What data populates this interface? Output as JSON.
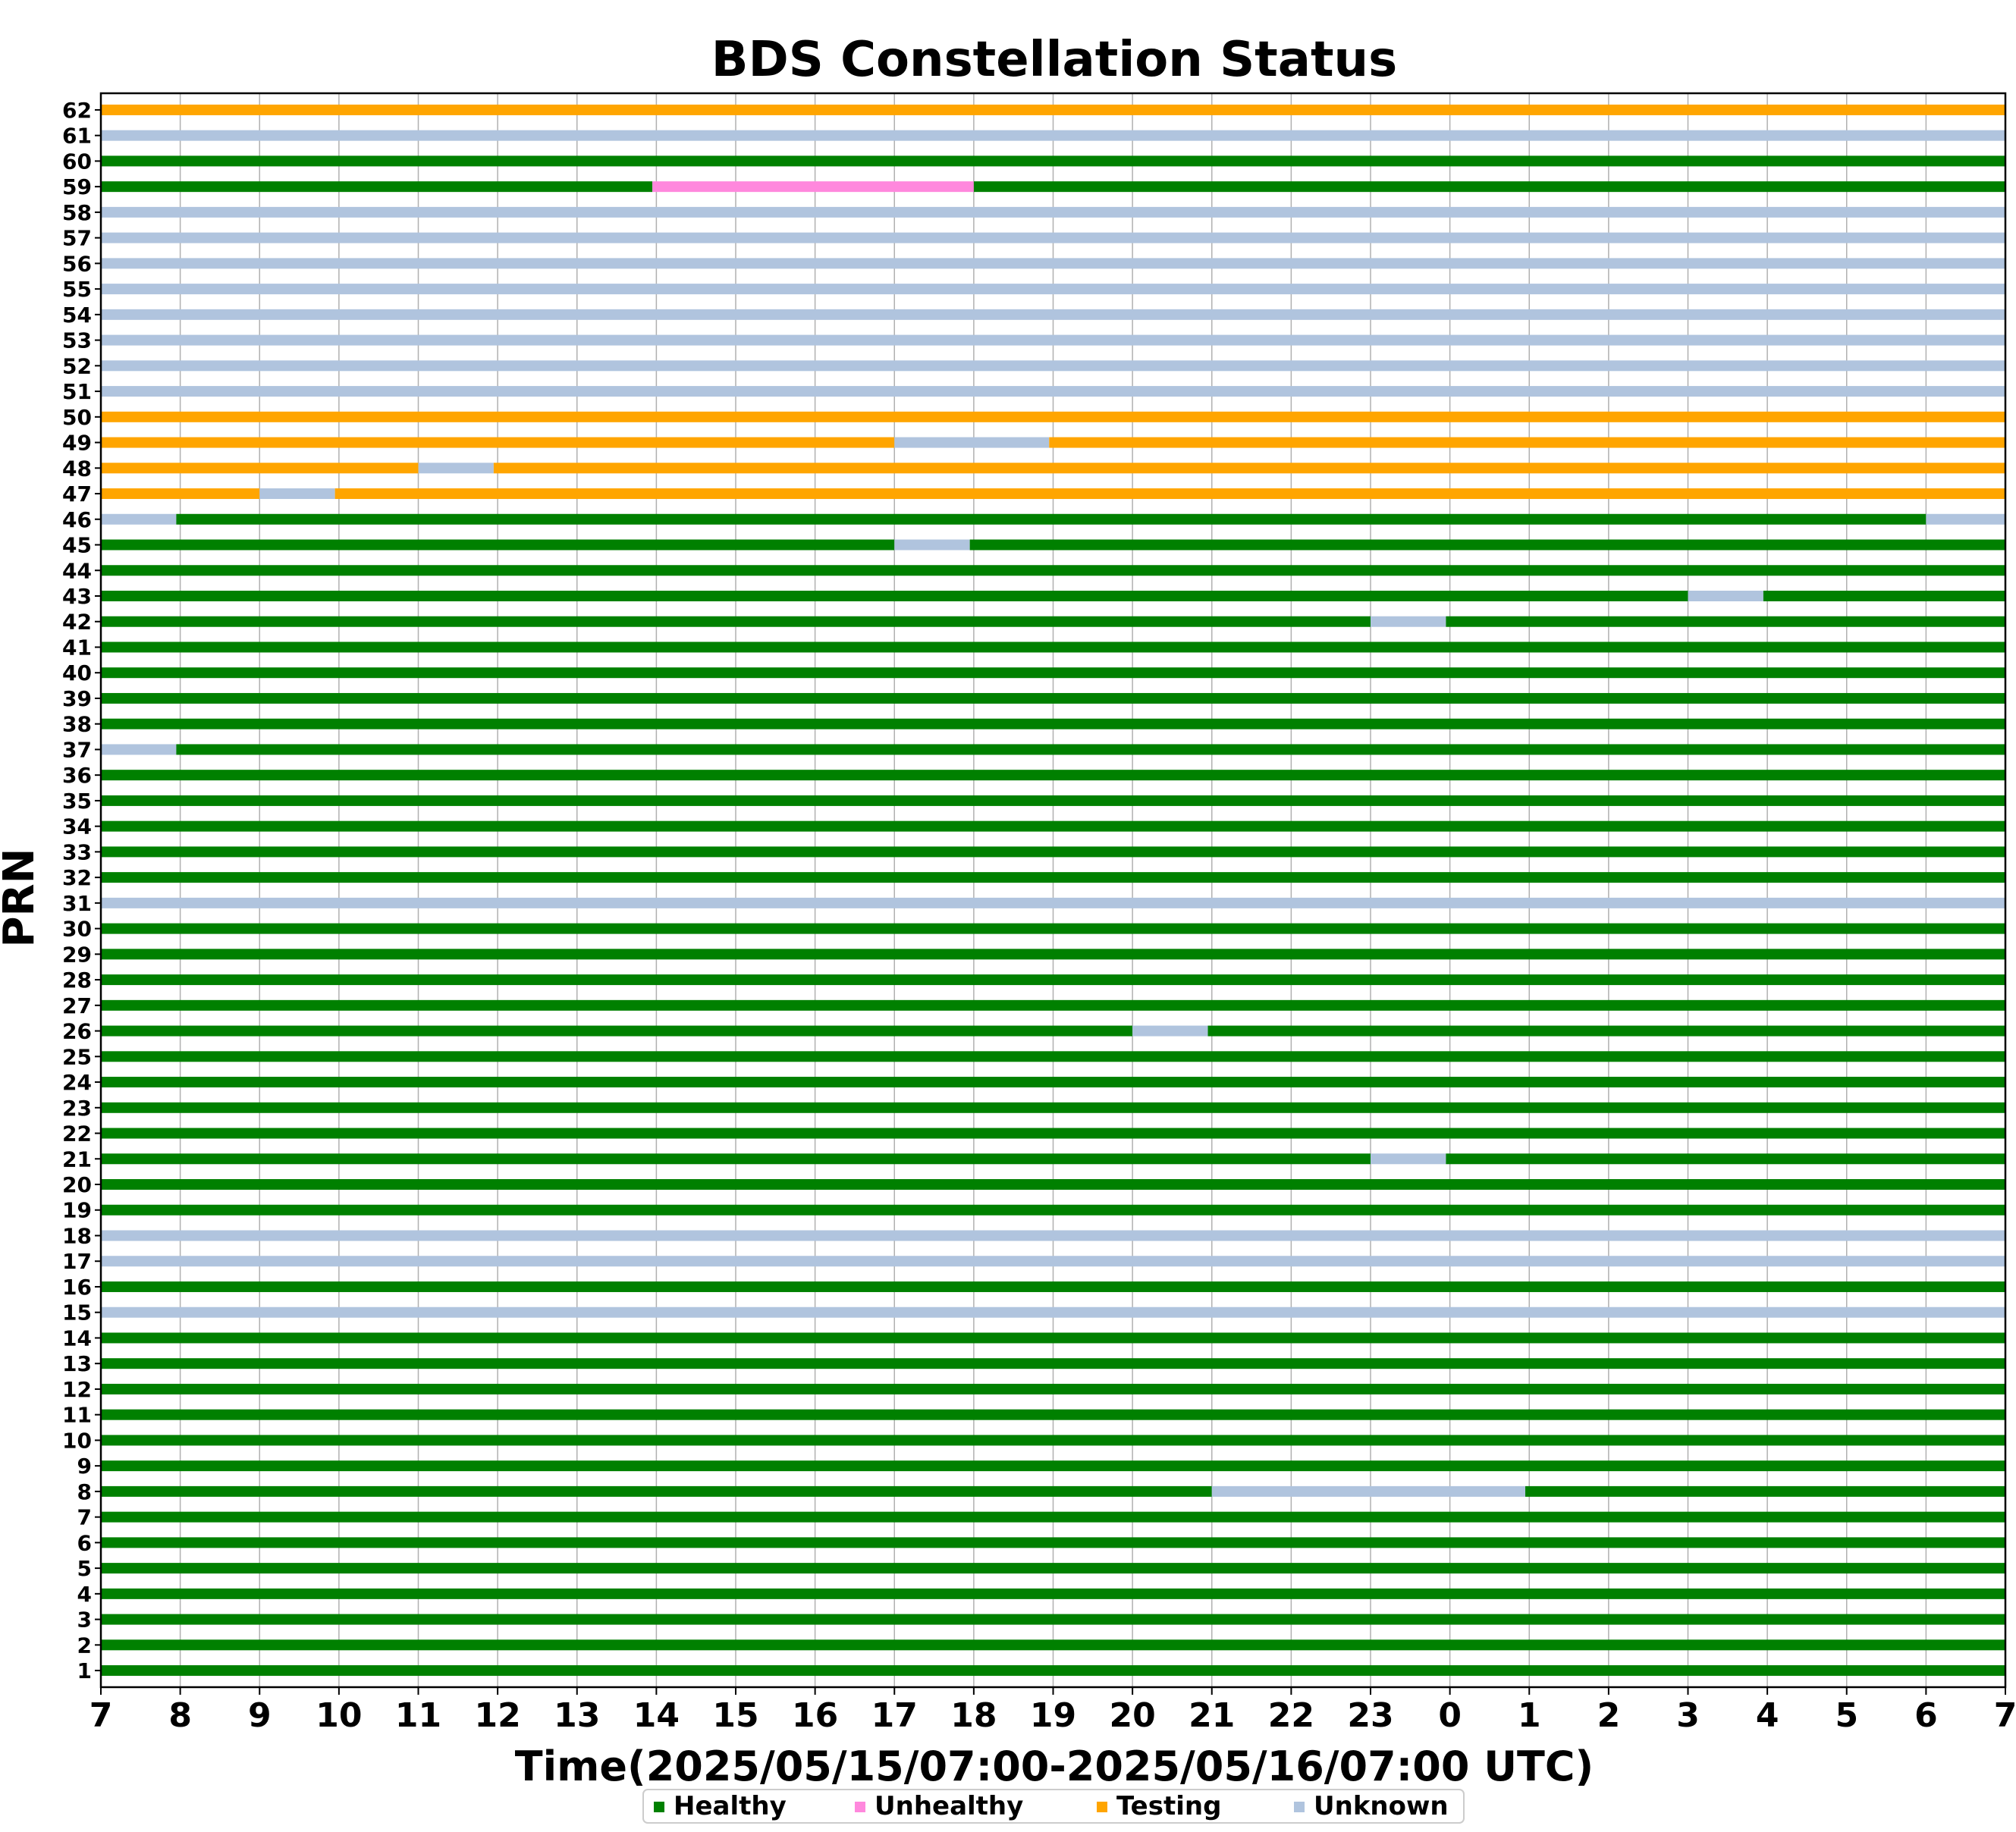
{
  "chart_data": {
    "type": "timeline",
    "title": "BDS Constellation Status",
    "xlabel": "Time(2025/05/15/07:00-2025/05/16/07:00 UTC)",
    "ylabel": "PRN",
    "x_start": "2025-05-15 07:00 UTC",
    "x_end": "2025-05-16 07:00 UTC",
    "xlim_hours": [
      0,
      24
    ],
    "x_tick_labels": [
      "7",
      "8",
      "9",
      "10",
      "11",
      "12",
      "13",
      "14",
      "15",
      "16",
      "17",
      "18",
      "19",
      "20",
      "21",
      "22",
      "23",
      "0",
      "1",
      "2",
      "3",
      "4",
      "5",
      "6",
      "7"
    ],
    "grid": "vertical",
    "legend": {
      "placement": "bottom-center",
      "items": [
        {
          "key": "healthy",
          "label": "Healthy"
        },
        {
          "key": "unhealthy",
          "label": "Unhealthy"
        },
        {
          "key": "testing",
          "label": "Testing"
        },
        {
          "key": "unknown",
          "label": "Unknown"
        }
      ]
    },
    "colors": {
      "healthy": "#008000",
      "unhealthy": "#ff88dd",
      "testing": "#ffa500",
      "unknown": "#b0c4de"
    },
    "satellites": [
      {
        "prn": 1,
        "segments": [
          {
            "start": 0,
            "end": 24,
            "status": "healthy"
          }
        ]
      },
      {
        "prn": 2,
        "segments": [
          {
            "start": 0,
            "end": 24,
            "status": "healthy"
          }
        ]
      },
      {
        "prn": 3,
        "segments": [
          {
            "start": 0,
            "end": 24,
            "status": "healthy"
          }
        ]
      },
      {
        "prn": 4,
        "segments": [
          {
            "start": 0,
            "end": 24,
            "status": "healthy"
          }
        ]
      },
      {
        "prn": 5,
        "segments": [
          {
            "start": 0,
            "end": 24,
            "status": "healthy"
          }
        ]
      },
      {
        "prn": 6,
        "segments": [
          {
            "start": 0,
            "end": 24,
            "status": "healthy"
          }
        ]
      },
      {
        "prn": 7,
        "segments": [
          {
            "start": 0,
            "end": 24,
            "status": "healthy"
          }
        ]
      },
      {
        "prn": 8,
        "segments": [
          {
            "start": 0,
            "end": 14,
            "status": "healthy"
          },
          {
            "start": 14,
            "end": 17.95,
            "status": "unknown"
          },
          {
            "start": 17.95,
            "end": 24,
            "status": "healthy"
          }
        ]
      },
      {
        "prn": 9,
        "segments": [
          {
            "start": 0,
            "end": 24,
            "status": "healthy"
          }
        ]
      },
      {
        "prn": 10,
        "segments": [
          {
            "start": 0,
            "end": 24,
            "status": "healthy"
          }
        ]
      },
      {
        "prn": 11,
        "segments": [
          {
            "start": 0,
            "end": 24,
            "status": "healthy"
          }
        ]
      },
      {
        "prn": 12,
        "segments": [
          {
            "start": 0,
            "end": 24,
            "status": "healthy"
          }
        ]
      },
      {
        "prn": 13,
        "segments": [
          {
            "start": 0,
            "end": 24,
            "status": "healthy"
          }
        ]
      },
      {
        "prn": 14,
        "segments": [
          {
            "start": 0,
            "end": 24,
            "status": "healthy"
          }
        ]
      },
      {
        "prn": 15,
        "segments": [
          {
            "start": 0,
            "end": 24,
            "status": "unknown"
          }
        ]
      },
      {
        "prn": 16,
        "segments": [
          {
            "start": 0,
            "end": 24,
            "status": "healthy"
          }
        ]
      },
      {
        "prn": 17,
        "segments": [
          {
            "start": 0,
            "end": 24,
            "status": "unknown"
          }
        ]
      },
      {
        "prn": 18,
        "segments": [
          {
            "start": 0,
            "end": 24,
            "status": "unknown"
          }
        ]
      },
      {
        "prn": 19,
        "segments": [
          {
            "start": 0,
            "end": 24,
            "status": "healthy"
          }
        ]
      },
      {
        "prn": 20,
        "segments": [
          {
            "start": 0,
            "end": 24,
            "status": "healthy"
          }
        ]
      },
      {
        "prn": 21,
        "segments": [
          {
            "start": 0,
            "end": 16,
            "status": "healthy"
          },
          {
            "start": 16,
            "end": 16.95,
            "status": "unknown"
          },
          {
            "start": 16.95,
            "end": 24,
            "status": "healthy"
          }
        ]
      },
      {
        "prn": 22,
        "segments": [
          {
            "start": 0,
            "end": 24,
            "status": "healthy"
          }
        ]
      },
      {
        "prn": 23,
        "segments": [
          {
            "start": 0,
            "end": 24,
            "status": "healthy"
          }
        ]
      },
      {
        "prn": 24,
        "segments": [
          {
            "start": 0,
            "end": 24,
            "status": "healthy"
          }
        ]
      },
      {
        "prn": 25,
        "segments": [
          {
            "start": 0,
            "end": 24,
            "status": "healthy"
          }
        ]
      },
      {
        "prn": 26,
        "segments": [
          {
            "start": 0,
            "end": 13,
            "status": "healthy"
          },
          {
            "start": 13,
            "end": 13.95,
            "status": "unknown"
          },
          {
            "start": 13.95,
            "end": 24,
            "status": "healthy"
          }
        ]
      },
      {
        "prn": 27,
        "segments": [
          {
            "start": 0,
            "end": 24,
            "status": "healthy"
          }
        ]
      },
      {
        "prn": 28,
        "segments": [
          {
            "start": 0,
            "end": 24,
            "status": "healthy"
          }
        ]
      },
      {
        "prn": 29,
        "segments": [
          {
            "start": 0,
            "end": 24,
            "status": "healthy"
          }
        ]
      },
      {
        "prn": 30,
        "segments": [
          {
            "start": 0,
            "end": 24,
            "status": "healthy"
          }
        ]
      },
      {
        "prn": 31,
        "segments": [
          {
            "start": 0,
            "end": 24,
            "status": "unknown"
          }
        ]
      },
      {
        "prn": 32,
        "segments": [
          {
            "start": 0,
            "end": 24,
            "status": "healthy"
          }
        ]
      },
      {
        "prn": 33,
        "segments": [
          {
            "start": 0,
            "end": 24,
            "status": "healthy"
          }
        ]
      },
      {
        "prn": 34,
        "segments": [
          {
            "start": 0,
            "end": 24,
            "status": "healthy"
          }
        ]
      },
      {
        "prn": 35,
        "segments": [
          {
            "start": 0,
            "end": 24,
            "status": "healthy"
          }
        ]
      },
      {
        "prn": 36,
        "segments": [
          {
            "start": 0,
            "end": 24,
            "status": "healthy"
          }
        ]
      },
      {
        "prn": 37,
        "segments": [
          {
            "start": 0,
            "end": 0.95,
            "status": "unknown"
          },
          {
            "start": 0.95,
            "end": 24,
            "status": "healthy"
          }
        ]
      },
      {
        "prn": 38,
        "segments": [
          {
            "start": 0,
            "end": 24,
            "status": "healthy"
          }
        ]
      },
      {
        "prn": 39,
        "segments": [
          {
            "start": 0,
            "end": 24,
            "status": "healthy"
          }
        ]
      },
      {
        "prn": 40,
        "segments": [
          {
            "start": 0,
            "end": 24,
            "status": "healthy"
          }
        ]
      },
      {
        "prn": 41,
        "segments": [
          {
            "start": 0,
            "end": 24,
            "status": "healthy"
          }
        ]
      },
      {
        "prn": 42,
        "segments": [
          {
            "start": 0,
            "end": 16,
            "status": "healthy"
          },
          {
            "start": 16,
            "end": 16.95,
            "status": "unknown"
          },
          {
            "start": 16.95,
            "end": 24,
            "status": "healthy"
          }
        ]
      },
      {
        "prn": 43,
        "segments": [
          {
            "start": 0,
            "end": 20,
            "status": "healthy"
          },
          {
            "start": 20,
            "end": 20.95,
            "status": "unknown"
          },
          {
            "start": 20.95,
            "end": 24,
            "status": "healthy"
          }
        ]
      },
      {
        "prn": 44,
        "segments": [
          {
            "start": 0,
            "end": 24,
            "status": "healthy"
          }
        ]
      },
      {
        "prn": 45,
        "segments": [
          {
            "start": 0,
            "end": 10,
            "status": "healthy"
          },
          {
            "start": 10,
            "end": 10.95,
            "status": "unknown"
          },
          {
            "start": 10.95,
            "end": 24,
            "status": "healthy"
          }
        ]
      },
      {
        "prn": 46,
        "segments": [
          {
            "start": 0,
            "end": 0.95,
            "status": "unknown"
          },
          {
            "start": 0.95,
            "end": 23,
            "status": "healthy"
          },
          {
            "start": 23,
            "end": 24,
            "status": "unknown"
          }
        ]
      },
      {
        "prn": 47,
        "segments": [
          {
            "start": 0,
            "end": 2,
            "status": "testing"
          },
          {
            "start": 2,
            "end": 2.95,
            "status": "unknown"
          },
          {
            "start": 2.95,
            "end": 24,
            "status": "testing"
          }
        ]
      },
      {
        "prn": 48,
        "segments": [
          {
            "start": 0,
            "end": 4,
            "status": "testing"
          },
          {
            "start": 4,
            "end": 4.95,
            "status": "unknown"
          },
          {
            "start": 4.95,
            "end": 24,
            "status": "testing"
          }
        ]
      },
      {
        "prn": 49,
        "segments": [
          {
            "start": 0,
            "end": 10,
            "status": "testing"
          },
          {
            "start": 10,
            "end": 11.95,
            "status": "unknown"
          },
          {
            "start": 11.95,
            "end": 24,
            "status": "testing"
          }
        ]
      },
      {
        "prn": 50,
        "segments": [
          {
            "start": 0,
            "end": 24,
            "status": "testing"
          }
        ]
      },
      {
        "prn": 51,
        "segments": [
          {
            "start": 0,
            "end": 24,
            "status": "unknown"
          }
        ]
      },
      {
        "prn": 52,
        "segments": [
          {
            "start": 0,
            "end": 24,
            "status": "unknown"
          }
        ]
      },
      {
        "prn": 53,
        "segments": [
          {
            "start": 0,
            "end": 24,
            "status": "unknown"
          }
        ]
      },
      {
        "prn": 54,
        "segments": [
          {
            "start": 0,
            "end": 24,
            "status": "unknown"
          }
        ]
      },
      {
        "prn": 55,
        "segments": [
          {
            "start": 0,
            "end": 24,
            "status": "unknown"
          }
        ]
      },
      {
        "prn": 56,
        "segments": [
          {
            "start": 0,
            "end": 24,
            "status": "unknown"
          }
        ]
      },
      {
        "prn": 57,
        "segments": [
          {
            "start": 0,
            "end": 24,
            "status": "unknown"
          }
        ]
      },
      {
        "prn": 58,
        "segments": [
          {
            "start": 0,
            "end": 24,
            "status": "unknown"
          }
        ]
      },
      {
        "prn": 59,
        "segments": [
          {
            "start": 0,
            "end": 6.95,
            "status": "healthy"
          },
          {
            "start": 6.95,
            "end": 11,
            "status": "unhealthy"
          },
          {
            "start": 11,
            "end": 24,
            "status": "healthy"
          }
        ]
      },
      {
        "prn": 60,
        "segments": [
          {
            "start": 0,
            "end": 24,
            "status": "healthy"
          }
        ]
      },
      {
        "prn": 61,
        "segments": [
          {
            "start": 0,
            "end": 24,
            "status": "unknown"
          }
        ]
      },
      {
        "prn": 62,
        "segments": [
          {
            "start": 0,
            "end": 24,
            "status": "testing"
          }
        ]
      }
    ]
  }
}
